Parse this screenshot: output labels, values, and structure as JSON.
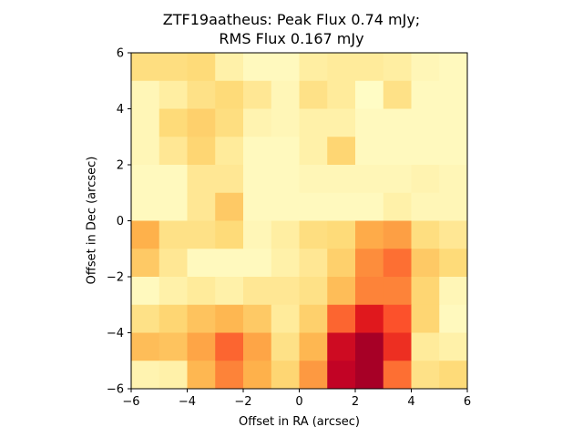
{
  "chart_data": {
    "type": "heatmap",
    "title_line1": "ZTF19aatheus: Peak Flux 0.74 mJy;",
    "title_line2": "RMS Flux 0.167 mJy",
    "xlabel": "Offset in RA (arcsec)",
    "ylabel": "Offset in Dec (arcsec)",
    "xlim": [
      -6,
      6
    ],
    "ylim": [
      -6,
      6
    ],
    "xticks": [
      -6,
      -4,
      -2,
      0,
      2,
      4,
      6
    ],
    "yticks": [
      -6,
      -4,
      -2,
      0,
      2,
      4,
      6
    ],
    "colormap": "YlOrRd",
    "grid_cols": 12,
    "grid_rows": 12,
    "values_top_to_bottom": [
      [
        0.22,
        0.22,
        0.24,
        0.1,
        0.04,
        0.04,
        0.12,
        0.14,
        0.14,
        0.12,
        0.06,
        0.04
      ],
      [
        0.06,
        0.12,
        0.2,
        0.24,
        0.16,
        0.06,
        0.2,
        0.14,
        0.02,
        0.2,
        0.04,
        0.04
      ],
      [
        0.06,
        0.24,
        0.28,
        0.22,
        0.08,
        0.06,
        0.1,
        0.1,
        0.04,
        0.04,
        0.04,
        0.04
      ],
      [
        0.06,
        0.16,
        0.26,
        0.14,
        0.04,
        0.04,
        0.1,
        0.26,
        0.04,
        0.04,
        0.04,
        0.04
      ],
      [
        0.04,
        0.04,
        0.16,
        0.16,
        0.04,
        0.04,
        0.06,
        0.06,
        0.06,
        0.06,
        0.08,
        0.06
      ],
      [
        0.04,
        0.04,
        0.16,
        0.3,
        0.04,
        0.04,
        0.04,
        0.04,
        0.04,
        0.1,
        0.06,
        0.06
      ],
      [
        0.38,
        0.2,
        0.2,
        0.24,
        0.06,
        0.12,
        0.22,
        0.24,
        0.4,
        0.44,
        0.22,
        0.16
      ],
      [
        0.3,
        0.16,
        0.04,
        0.04,
        0.04,
        0.1,
        0.16,
        0.28,
        0.5,
        0.56,
        0.3,
        0.24
      ],
      [
        0.04,
        0.1,
        0.14,
        0.1,
        0.16,
        0.16,
        0.2,
        0.34,
        0.52,
        0.52,
        0.26,
        0.06
      ],
      [
        0.2,
        0.26,
        0.32,
        0.36,
        0.3,
        0.14,
        0.28,
        0.58,
        0.76,
        0.62,
        0.26,
        0.04
      ],
      [
        0.34,
        0.32,
        0.42,
        0.58,
        0.42,
        0.2,
        0.36,
        0.82,
        0.92,
        0.7,
        0.14,
        0.1
      ],
      [
        0.08,
        0.1,
        0.36,
        0.52,
        0.38,
        0.26,
        0.46,
        0.86,
        0.92,
        0.56,
        0.2,
        0.24
      ]
    ]
  }
}
